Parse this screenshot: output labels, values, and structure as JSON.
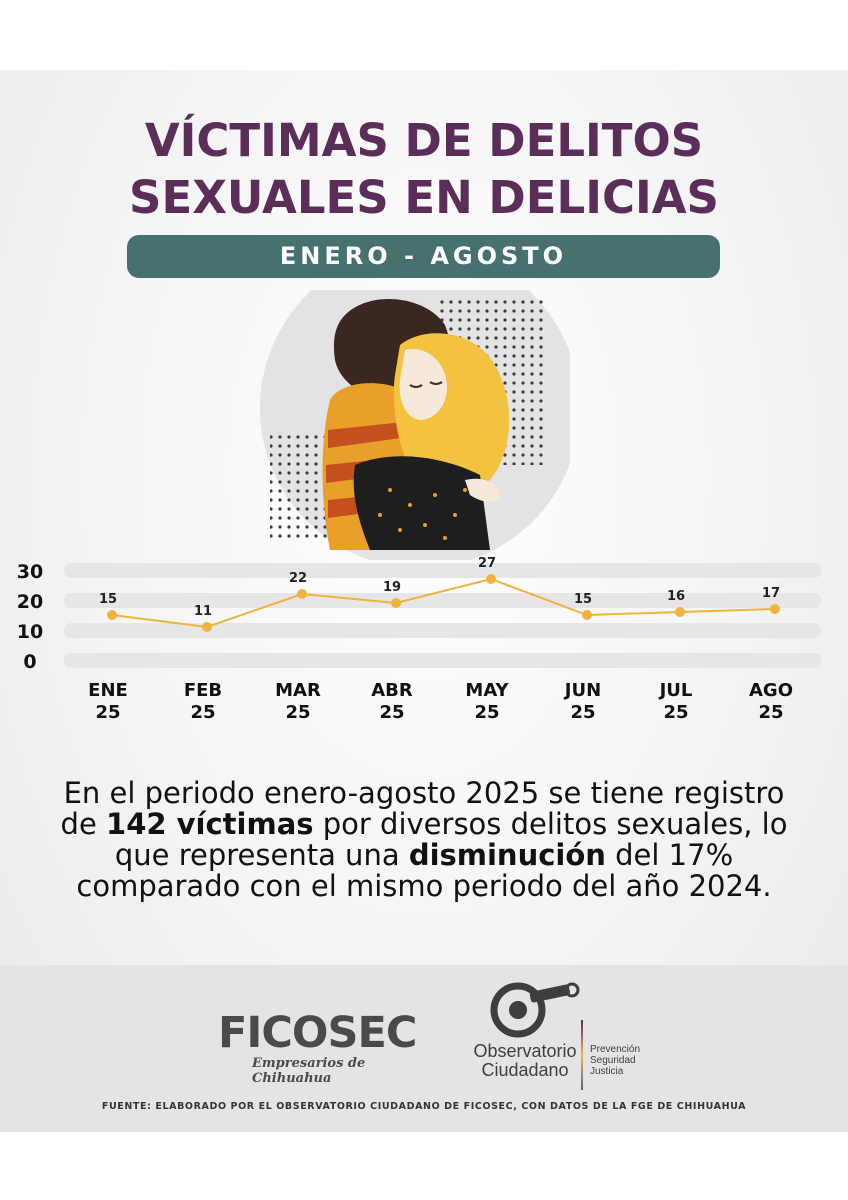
{
  "title_line1": "VÍCTIMAS DE DELITOS",
  "title_line2": "SEXUALES EN DELICIAS",
  "period": "ENERO - AGOSTO",
  "chart_data": {
    "type": "line",
    "categories": [
      "ENE 25",
      "FEB 25",
      "MAR 25",
      "ABR 25",
      "MAY 25",
      "JUN 25",
      "JUL 25",
      "AGO 25"
    ],
    "month_labels": [
      "ENE",
      "FEB",
      "MAR",
      "ABR",
      "MAY",
      "JUN",
      "JUL",
      "AGO"
    ],
    "year_labels": [
      "25",
      "25",
      "25",
      "25",
      "25",
      "25",
      "25",
      "25"
    ],
    "values": [
      15,
      11,
      22,
      19,
      27,
      15,
      16,
      17
    ],
    "y_ticks": [
      30,
      20,
      10,
      0
    ],
    "ylim": [
      0,
      30
    ],
    "line_color": "#f0b43c"
  },
  "paragraph": {
    "p1": "En el periodo enero-agosto 2025 se tiene registro de ",
    "b1": "142 víctimas",
    "p2": " por diversos delitos sexuales, lo que representa una ",
    "b2": "disminución",
    "p3": " del 17% comparado con el mismo periodo del año 2024."
  },
  "footer": {
    "ficosec_name": "FICOSEC",
    "ficosec_sub": "Empresarios de Chihuahua",
    "obs_line1": "Observatorio",
    "obs_line2": "Ciudadano",
    "obs_tag1": "Prevención",
    "obs_tag2": "Seguridad",
    "obs_tag3": "Justicia",
    "source": "FUENTE: ELABORADO POR EL OBSERVATORIO CIUDADANO DE FICOSEC, CON DATOS DE LA FGE DE CHIHUAHUA"
  },
  "colors": {
    "title": "#5a2e58",
    "pill": "#46716f",
    "accent": "#f0b43c"
  }
}
